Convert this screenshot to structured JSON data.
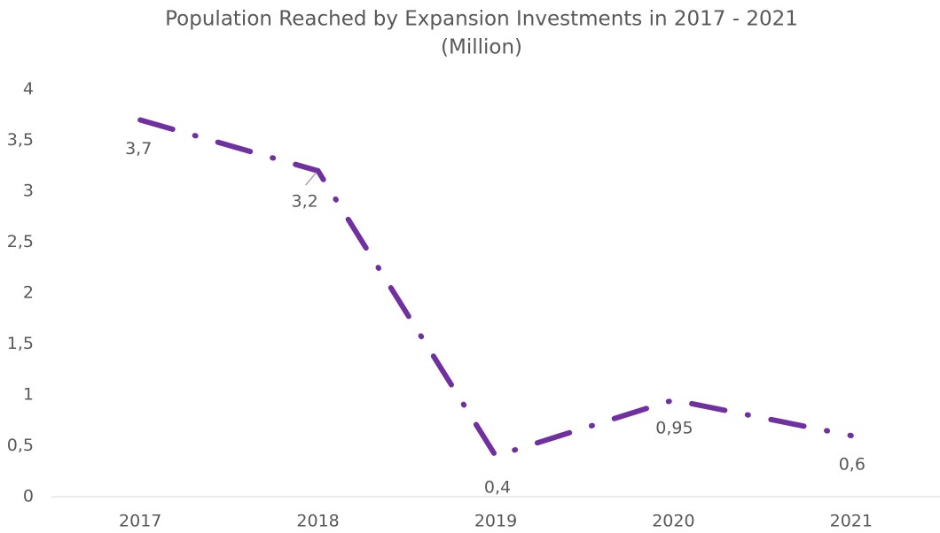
{
  "chart_data": {
    "type": "line",
    "title": "Population Reached by Expansion Investments in 2017 - 2021",
    "subtitle": "(Million)",
    "categories": [
      "2017",
      "2018",
      "2019",
      "2020",
      "2021"
    ],
    "values": [
      3.7,
      3.2,
      0.4,
      0.95,
      0.6
    ],
    "value_labels": [
      "3,7",
      "3,2",
      "0,4",
      "0,95",
      "0,6"
    ],
    "color": "#7030a0",
    "ylim": [
      0,
      4
    ],
    "yticks": [
      0,
      {
        "value": 0.5,
        "label": "0,5"
      },
      1,
      {
        "value": 1.5,
        "label": "1,5"
      },
      2,
      {
        "value": 2.5,
        "label": "2,5"
      },
      3,
      {
        "value": 3.5,
        "label": "3,5"
      },
      4
    ],
    "grid": false
  }
}
